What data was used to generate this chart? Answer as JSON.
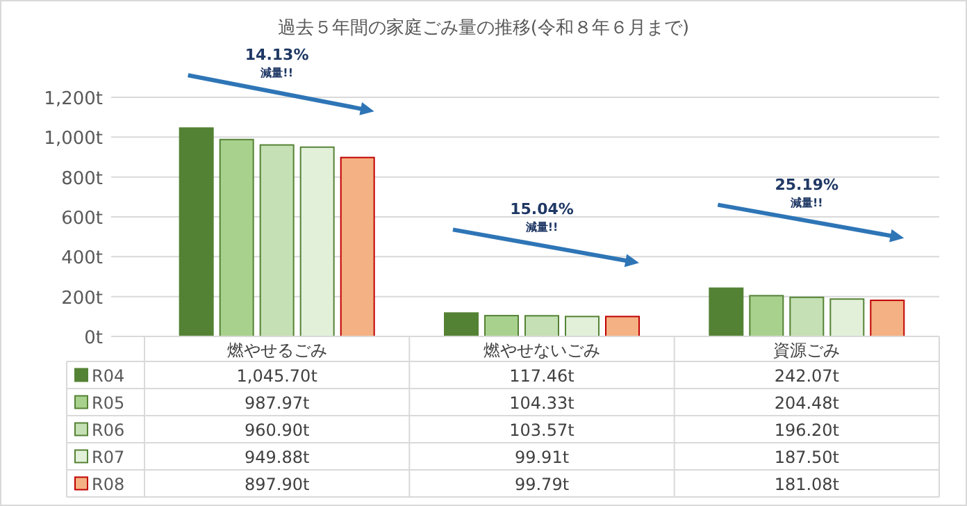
{
  "chart_data": {
    "type": "bar",
    "title": "過去５年間の家庭ごみ量の推移(令和８年６月まで)",
    "categories": [
      "燃やせるごみ",
      "燃やせないごみ",
      "資源ごみ"
    ],
    "series": [
      {
        "name": "R04",
        "color": "#548235",
        "values": [
          1045.7,
          117.46,
          242.07
        ],
        "value_labels": [
          "1,045.70t",
          "117.46t",
          "242.07t"
        ]
      },
      {
        "name": "R05",
        "color": "#a9d18e",
        "values": [
          987.97,
          104.33,
          204.48
        ],
        "value_labels": [
          "987.97t",
          "104.33t",
          "204.48t"
        ]
      },
      {
        "name": "R06",
        "color": "#c5e0b4",
        "values": [
          960.9,
          103.57,
          196.2
        ],
        "value_labels": [
          "960.90t",
          "103.57t",
          "196.20t"
        ]
      },
      {
        "name": "R07",
        "color": "#e2f0d9",
        "values": [
          949.88,
          99.91,
          187.5
        ],
        "value_labels": [
          "949.88t",
          "99.91t",
          "187.50t"
        ]
      },
      {
        "name": "R08",
        "color": "#f4b183",
        "values": [
          897.9,
          99.79,
          181.08
        ],
        "value_labels": [
          "897.90t",
          "99.79t",
          "181.08t"
        ]
      }
    ],
    "ylim": [
      0,
      1200
    ],
    "yticks": [
      {
        "value": 0,
        "label": "0t"
      },
      {
        "value": 200,
        "label": "200t"
      },
      {
        "value": 400,
        "label": "400t"
      },
      {
        "value": 600,
        "label": "600t"
      },
      {
        "value": 800,
        "label": "800t"
      },
      {
        "value": 1000,
        "label": "1,000t"
      },
      {
        "value": 1200,
        "label": "1,200t"
      }
    ],
    "grid": "y",
    "legend": "bottom",
    "annotations": [
      "14.13%",
      "減量!!",
      "15.04%",
      "減量!!",
      "25.19%",
      "減量!!"
    ]
  }
}
